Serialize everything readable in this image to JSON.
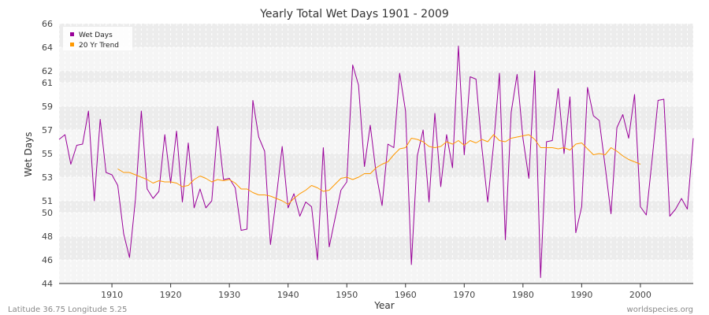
{
  "chart_data": {
    "type": "line",
    "title": "Yearly Total Wet Days 1901 - 2009",
    "xlabel": "Year",
    "ylabel": "Wet Days",
    "xlim": [
      1901,
      2009
    ],
    "ylim": [
      44,
      66
    ],
    "y_ticks": [
      44,
      46,
      48,
      50,
      51,
      53,
      55,
      57,
      59,
      61,
      62,
      64,
      66
    ],
    "x_ticks": [
      1910,
      1920,
      1930,
      1940,
      1950,
      1960,
      1970,
      1980,
      1990,
      2000
    ],
    "grid": true,
    "legend_position": "top-left",
    "series": [
      {
        "name": "Wet Days",
        "color": "#990099",
        "x_start": 1901,
        "values": [
          56.2,
          56.6,
          54.1,
          55.7,
          55.8,
          58.6,
          51.0,
          57.9,
          53.4,
          53.2,
          52.3,
          48.2,
          46.2,
          51.1,
          58.6,
          52.0,
          51.2,
          51.8,
          56.6,
          52.5,
          56.9,
          50.9,
          55.9,
          50.4,
          52.0,
          50.4,
          51.0,
          57.3,
          52.8,
          52.9,
          52.1,
          48.5,
          48.6,
          59.5,
          56.4,
          55.2,
          47.3,
          51.3,
          55.6,
          50.4,
          51.6,
          49.7,
          50.9,
          50.5,
          46.0,
          55.5,
          47.1,
          49.5,
          51.9,
          52.6,
          62.5,
          60.8,
          53.9,
          57.4,
          53.3,
          50.6,
          55.8,
          55.5,
          61.8,
          58.6,
          45.6,
          54.8,
          57.0,
          50.9,
          58.4,
          52.2,
          56.6,
          53.8,
          64.1,
          54.9,
          61.5,
          61.3,
          55.5,
          50.9,
          55.8,
          61.8,
          47.7,
          58.5,
          61.7,
          56.3,
          52.9,
          62.0,
          44.5,
          56.0,
          56.1,
          60.5,
          55.0,
          59.8,
          48.3,
          50.5,
          60.6,
          58.2,
          57.8,
          53.9,
          49.9,
          57.2,
          58.3,
          56.3,
          60.0,
          50.5,
          49.8,
          54.5,
          59.5,
          59.6,
          49.7,
          50.3,
          51.2,
          50.3,
          56.3
        ]
      },
      {
        "name": "20 Yr Trend",
        "color": "#ff9900",
        "x_start": 1911,
        "values": [
          53.7,
          53.4,
          53.4,
          53.2,
          53.0,
          52.8,
          52.5,
          52.7,
          52.6,
          52.6,
          52.5,
          52.2,
          52.3,
          52.8,
          53.1,
          52.9,
          52.6,
          52.8,
          52.7,
          52.8,
          52.5,
          52.0,
          52.0,
          51.7,
          51.5,
          51.5,
          51.4,
          51.2,
          51.0,
          50.7,
          51.2,
          51.6,
          51.9,
          52.3,
          52.1,
          51.8,
          51.9,
          52.4,
          52.9,
          53.0,
          52.8,
          53.0,
          53.3,
          53.3,
          53.8,
          54.1,
          54.3,
          54.9,
          55.4,
          55.5,
          56.3,
          56.2,
          56.0,
          55.6,
          55.5,
          55.6,
          56.0,
          55.8,
          56.1,
          55.7,
          56.1,
          55.9,
          56.2,
          56.0,
          56.6,
          56.1,
          56.0,
          56.3,
          56.4,
          56.5,
          56.6,
          56.2,
          55.5,
          55.5,
          55.5,
          55.4,
          55.5,
          55.3,
          55.8,
          55.9,
          55.4,
          54.9,
          55.0,
          54.9,
          55.5,
          55.2,
          54.8,
          54.5,
          54.3,
          54.1
        ]
      }
    ]
  },
  "legend": {
    "item1": "Wet Days",
    "item2": "20 Yr Trend"
  },
  "footer": {
    "location": "Latitude 36.75 Longitude 5.25",
    "source": "worldspecies.org"
  }
}
